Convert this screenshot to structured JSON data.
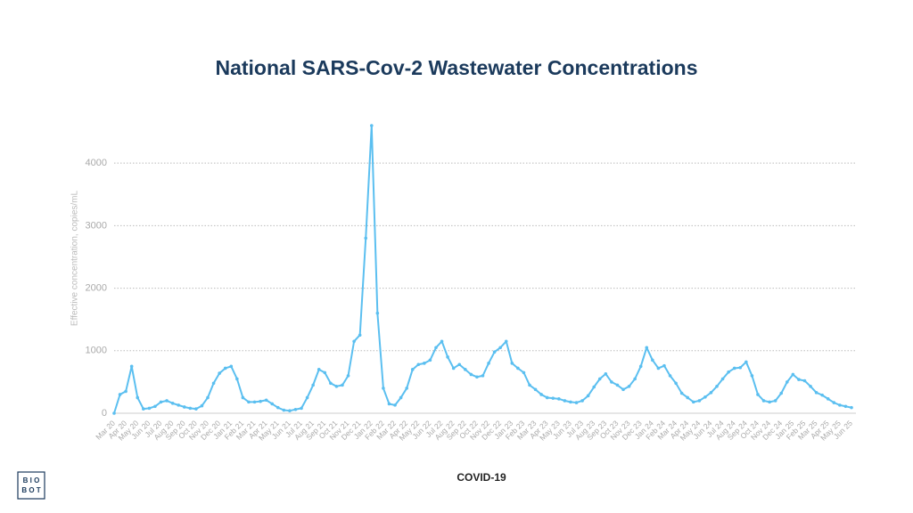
{
  "chart_data": {
    "type": "line",
    "title": "National SARS-Cov-2 Wastewater Concentrations",
    "y_label": "Effective concentration, copies/mL",
    "x_label": "COVID-19",
    "categories": [
      "Mar 20",
      null,
      "Apr 20",
      null,
      "May 20",
      null,
      "Jun 20",
      null,
      "Jul 20",
      null,
      "Aug 20",
      null,
      "Sep 20",
      null,
      "Oct 20",
      null,
      "Nov 20",
      null,
      "Dec 20",
      null,
      "Jan 21",
      null,
      "Feb 21",
      null,
      "Mar 21",
      null,
      "Apr 21",
      null,
      "May 21",
      null,
      "Jun 21",
      null,
      "Jul 21",
      null,
      "Aug 21",
      null,
      "Sep 21",
      null,
      "Oct 21",
      null,
      "Nov 21",
      null,
      "Dec 21",
      null,
      "Jan 22",
      null,
      "Feb 22",
      null,
      "Mar 22",
      null,
      "Apr 22",
      null,
      "May 22",
      null,
      "Jun 22",
      null,
      "Jul 22",
      null,
      "Aug 22",
      null,
      "Sep 22",
      null,
      "Oct 22",
      null,
      "Nov 22",
      null,
      "Dec 22",
      null,
      "Jan 23",
      null,
      "Feb 23",
      null,
      "Mar 23",
      null,
      "Apr 23",
      null,
      "May 23",
      null,
      "Jun 23",
      null,
      "Jul 23",
      null,
      "Aug 23",
      null,
      "Sep 23",
      null,
      "Oct 23",
      null,
      "Nov 23",
      null,
      "Dec 23",
      null,
      "Jan 24",
      null,
      "Feb 24",
      null,
      "Mar 24",
      null,
      "Apr 24",
      null,
      "May 24",
      null,
      "Jun 24",
      null,
      "Jul 24",
      null,
      "Aug 24",
      null,
      "Sep 24",
      null,
      "Oct 24",
      null,
      "Nov 24",
      null,
      "Dec 24",
      null,
      "Jan 25",
      null,
      "Feb 25",
      null,
      "Mar 25",
      null,
      "Apr 25",
      null,
      "May 25",
      null,
      "Jun 25"
    ],
    "series": [
      {
        "name": "COVID-19",
        "color": "#5bbff0",
        "values": [
          0,
          300,
          350,
          750,
          250,
          70,
          80,
          110,
          180,
          200,
          160,
          130,
          100,
          80,
          70,
          120,
          250,
          480,
          640,
          720,
          750,
          550,
          250,
          180,
          180,
          190,
          210,
          150,
          90,
          50,
          40,
          60,
          80,
          250,
          450,
          700,
          650,
          480,
          430,
          450,
          600,
          1150,
          1250,
          2800,
          4600,
          1600,
          400,
          150,
          130,
          250,
          400,
          700,
          780,
          800,
          850,
          1050,
          1150,
          900,
          720,
          780,
          700,
          620,
          580,
          600,
          800,
          980,
          1050,
          1150,
          800,
          720,
          650,
          450,
          380,
          300,
          250,
          240,
          230,
          200,
          180,
          170,
          200,
          280,
          420,
          550,
          630,
          500,
          450,
          380,
          430,
          550,
          750,
          1050,
          850,
          720,
          760,
          600,
          480,
          320,
          250,
          180,
          200,
          260,
          330,
          430,
          550,
          660,
          720,
          730,
          820,
          600,
          300,
          200,
          180,
          200,
          320,
          500,
          620,
          540,
          520,
          430,
          330,
          290,
          230,
          170,
          130,
          110,
          90
        ]
      }
    ],
    "ylim": [
      0,
      4900
    ],
    "yticks": [
      0,
      1000,
      2000,
      3000,
      4000
    ],
    "grid": true
  },
  "logo": {
    "line1": "B I O",
    "line2": "B O T"
  }
}
